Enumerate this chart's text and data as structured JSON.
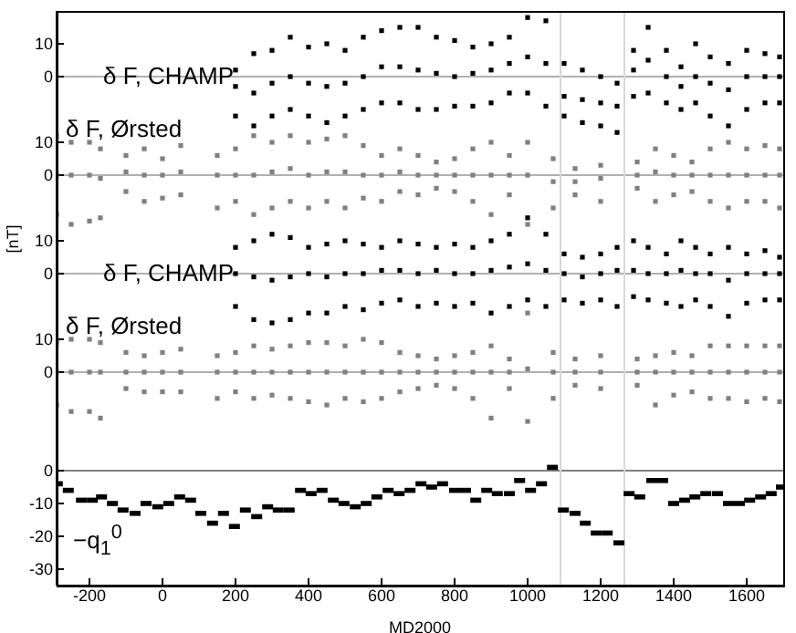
{
  "chart_data": [
    {
      "type": "scatter",
      "xlim": [
        -290,
        1700
      ],
      "ylim": [
        -20,
        20
      ],
      "yticks": [
        0,
        10
      ],
      "tick_labels": "y",
      "ref_lines": [
        {
          "axis": "y",
          "value": 0,
          "color": "#b0b0b0"
        },
        {
          "axis": "x",
          "value": 1090,
          "color": "#d8d8d8"
        },
        {
          "axis": "x",
          "value": 1265,
          "color": "#d8d8d8"
        }
      ],
      "series": [
        {
          "name": "δ F, CHAMP",
          "color": "#000000",
          "x": [
            200,
            250,
            300,
            350,
            400,
            450,
            500,
            550,
            600,
            650,
            700,
            750,
            800,
            850,
            900,
            950,
            1000,
            1050,
            1100,
            1150,
            1200,
            1245,
            1290,
            1330,
            1380,
            1420,
            1460,
            1500,
            1550,
            1600,
            1650,
            1690,
            200,
            250,
            300,
            350,
            400,
            450,
            500,
            550,
            600,
            650,
            700,
            750,
            800,
            850,
            900,
            950,
            1000,
            1050,
            1100,
            1150,
            1200,
            1245,
            1290,
            1330,
            1380,
            1420,
            1460,
            1500,
            1550,
            1600,
            1650,
            1690,
            200,
            250,
            300,
            350,
            400,
            450,
            500,
            550,
            600,
            650,
            700,
            750,
            800,
            850,
            900,
            950,
            1000,
            1050,
            1100,
            1150,
            1200,
            1245,
            1290,
            1330,
            1380,
            1420,
            1460,
            1500,
            1550,
            1600,
            1650,
            1690
          ],
          "values": [
            2,
            7,
            8,
            12,
            9,
            10,
            8,
            12,
            14,
            15,
            15,
            12,
            11,
            9,
            10,
            12,
            18,
            17,
            4,
            2,
            0,
            -2,
            8,
            15,
            8,
            3,
            10,
            6,
            4,
            8,
            7,
            6,
            -12,
            -15,
            -12,
            -10,
            -12,
            -14,
            -12,
            -10,
            -8,
            -8,
            -10,
            -10,
            -9,
            -9,
            -8,
            -5,
            -5,
            -9,
            -12,
            -14,
            -15,
            -17,
            -6,
            -5,
            -8,
            -10,
            -8,
            -12,
            -15,
            -10,
            -8,
            -8,
            -3,
            -5,
            -2,
            0,
            -2,
            -3,
            -2,
            0,
            3,
            3,
            2,
            1,
            0,
            1,
            2,
            4,
            6,
            4,
            -6,
            -7,
            -8,
            -9,
            2,
            5,
            0,
            -3,
            0,
            -2,
            -4,
            0,
            0,
            0
          ]
        }
      ]
    },
    {
      "type": "scatter",
      "xlim": [
        -290,
        1700
      ],
      "ylim": [
        -20,
        20
      ],
      "yticks": [
        0,
        10
      ],
      "tick_labels": "y",
      "ref_lines": [
        {
          "axis": "y",
          "value": 0,
          "color": "#b0b0b0"
        },
        {
          "axis": "x",
          "value": 1090,
          "color": "#d8d8d8"
        },
        {
          "axis": "x",
          "value": 1265,
          "color": "#d8d8d8"
        }
      ],
      "series": [
        {
          "name": "δ F, Ørsted",
          "color": "#808080",
          "x": [
            -290,
            -250,
            -200,
            -170,
            -100,
            -50,
            0,
            50,
            150,
            200,
            250,
            300,
            350,
            400,
            450,
            500,
            550,
            600,
            650,
            700,
            750,
            800,
            850,
            900,
            950,
            1000,
            1070,
            1130,
            1200,
            1300,
            1350,
            1400,
            1450,
            1500,
            1550,
            1600,
            1650,
            1690,
            -290,
            -250,
            -200,
            -170,
            -100,
            -50,
            0,
            50,
            150,
            200,
            250,
            300,
            350,
            400,
            450,
            500,
            550,
            600,
            650,
            700,
            750,
            800,
            850,
            900,
            950,
            1000,
            1070,
            1130,
            1200,
            1300,
            1350,
            1400,
            1450,
            1500,
            1550,
            1600,
            1650,
            1690,
            -290,
            -250,
            -200,
            -170,
            -100,
            -50,
            0,
            50,
            150,
            200,
            250,
            300,
            350,
            400,
            450,
            500,
            550,
            600,
            650,
            700,
            750,
            800,
            850,
            900,
            950,
            1000,
            1070,
            1130,
            1200,
            1300,
            1350,
            1400,
            1450,
            1500,
            1550,
            1600,
            1650,
            1690
          ],
          "values": [
            12,
            10,
            10,
            8,
            6,
            8,
            5,
            9,
            6,
            8,
            12,
            10,
            12,
            10,
            11,
            12,
            9,
            6,
            8,
            6,
            4,
            5,
            8,
            10,
            6,
            10,
            5,
            2,
            3,
            4,
            8,
            6,
            4,
            8,
            10,
            8,
            9,
            8,
            -12,
            -15,
            -14,
            -13,
            -5,
            -8,
            -7,
            -6,
            -10,
            -8,
            -12,
            -10,
            -8,
            -10,
            -8,
            -10,
            -7,
            -8,
            -5,
            -6,
            -4,
            -5,
            -8,
            -12,
            -6,
            -15,
            -10,
            -6,
            -8,
            -4,
            -8,
            -6,
            -5,
            -8,
            -10,
            -8,
            -8,
            -10,
            0,
            0,
            0,
            -1,
            1,
            0,
            0,
            1,
            0,
            0,
            0,
            1,
            2,
            0,
            1,
            1,
            0,
            0,
            1,
            0,
            0,
            0,
            0,
            0,
            0,
            0,
            -2,
            -2,
            -1,
            0,
            1,
            0,
            0,
            0,
            0,
            0,
            0,
            0
          ]
        }
      ]
    },
    {
      "type": "scatter",
      "xlim": [
        -290,
        1700
      ],
      "ylim": [
        -20,
        20
      ],
      "yticks": [
        0,
        10
      ],
      "tick_labels": "y",
      "ylabel": "[nT]",
      "ref_lines": [
        {
          "axis": "y",
          "value": 0,
          "color": "#b0b0b0"
        },
        {
          "axis": "x",
          "value": 1090,
          "color": "#d8d8d8"
        },
        {
          "axis": "x",
          "value": 1265,
          "color": "#d8d8d8"
        }
      ],
      "series": [
        {
          "name": "δ F, CHAMP",
          "color": "#000000",
          "x": [
            200,
            250,
            300,
            350,
            400,
            450,
            500,
            550,
            600,
            650,
            700,
            750,
            800,
            850,
            900,
            950,
            1000,
            1050,
            1100,
            1150,
            1200,
            1245,
            1290,
            1330,
            1380,
            1420,
            1460,
            1500,
            1550,
            1600,
            1650,
            1690,
            200,
            250,
            300,
            350,
            400,
            450,
            500,
            550,
            600,
            650,
            700,
            750,
            800,
            850,
            900,
            950,
            1000,
            1050,
            1100,
            1150,
            1200,
            1245,
            1290,
            1330,
            1380,
            1420,
            1460,
            1500,
            1550,
            1600,
            1650,
            1690,
            200,
            250,
            300,
            350,
            400,
            450,
            500,
            550,
            600,
            650,
            700,
            750,
            800,
            850,
            900,
            950,
            1000,
            1050,
            1100,
            1150,
            1200,
            1245,
            1290,
            1330,
            1380,
            1420,
            1460,
            1500,
            1550,
            1600,
            1650,
            1690
          ],
          "values": [
            8,
            10,
            12,
            11,
            8,
            9,
            10,
            9,
            8,
            10,
            9,
            8,
            9,
            8,
            10,
            12,
            17,
            12,
            6,
            5,
            6,
            8,
            10,
            8,
            6,
            10,
            8,
            6,
            8,
            6,
            7,
            5,
            -10,
            -14,
            -15,
            -14,
            -12,
            -12,
            -10,
            -11,
            -9,
            -8,
            -10,
            -9,
            -10,
            -9,
            -12,
            -10,
            -8,
            -10,
            -8,
            -9,
            -8,
            -10,
            -7,
            -8,
            -9,
            -10,
            -8,
            -10,
            -13,
            -9,
            -8,
            -8,
            0,
            -1,
            -2,
            -1,
            0,
            -1,
            0,
            0,
            1,
            1,
            0,
            1,
            0,
            0,
            1,
            2,
            3,
            1,
            0,
            -1,
            0,
            1,
            1,
            0,
            0,
            1,
            0,
            0,
            -2,
            0,
            0,
            0
          ]
        }
      ]
    },
    {
      "type": "scatter",
      "xlim": [
        -290,
        1700
      ],
      "ylim": [
        -20,
        20
      ],
      "yticks": [
        0,
        10
      ],
      "tick_labels": "y",
      "ref_lines": [
        {
          "axis": "y",
          "value": 0,
          "color": "#b0b0b0"
        },
        {
          "axis": "x",
          "value": 1090,
          "color": "#d8d8d8"
        },
        {
          "axis": "x",
          "value": 1265,
          "color": "#d8d8d8"
        }
      ],
      "series": [
        {
          "name": "δ F, Ørsted",
          "color": "#808080",
          "x": [
            -290,
            -250,
            -200,
            -170,
            -100,
            -50,
            0,
            50,
            150,
            200,
            250,
            300,
            350,
            400,
            450,
            500,
            550,
            600,
            650,
            700,
            750,
            800,
            850,
            900,
            950,
            1000,
            1070,
            1130,
            1200,
            1300,
            1350,
            1400,
            1450,
            1500,
            1550,
            1600,
            1650,
            1690,
            -290,
            -250,
            -200,
            -170,
            -100,
            -50,
            0,
            50,
            150,
            200,
            250,
            300,
            350,
            400,
            450,
            500,
            550,
            600,
            650,
            700,
            750,
            800,
            850,
            900,
            950,
            1000,
            1070,
            1130,
            1200,
            1300,
            1350,
            1400,
            1450,
            1500,
            1550,
            1600,
            1650,
            1690,
            -290,
            -250,
            -200,
            -170,
            -100,
            -50,
            0,
            50,
            150,
            200,
            250,
            300,
            350,
            400,
            450,
            500,
            550,
            600,
            650,
            700,
            750,
            800,
            850,
            900,
            950,
            1000,
            1070,
            1130,
            1200,
            1300,
            1350,
            1400,
            1450,
            1500,
            1550,
            1600,
            1650,
            1690
          ],
          "values": [
            9,
            10,
            10,
            9,
            6,
            5,
            6,
            7,
            5,
            6,
            8,
            7,
            8,
            9,
            9,
            8,
            10,
            9,
            6,
            5,
            4,
            5,
            6,
            8,
            4,
            18,
            6,
            4,
            5,
            4,
            5,
            6,
            5,
            8,
            8,
            8,
            8,
            8,
            -10,
            -12,
            -12,
            -14,
            -5,
            -6,
            -6,
            -6,
            -8,
            -6,
            -8,
            -7,
            -8,
            -9,
            -10,
            -8,
            -9,
            -8,
            -6,
            -5,
            -4,
            -5,
            -8,
            -14,
            -5,
            -15,
            -8,
            -4,
            -5,
            -4,
            -10,
            -7,
            -6,
            -8,
            -8,
            -9,
            -8,
            -9,
            0,
            0,
            0,
            0,
            0,
            0,
            0,
            0,
            0,
            0,
            0,
            0,
            0,
            0,
            0,
            0,
            0,
            0,
            0,
            0,
            0,
            0,
            0,
            0,
            0,
            1,
            0,
            0,
            0,
            0,
            0,
            0,
            0,
            0,
            0,
            0,
            0,
            0
          ]
        }
      ]
    },
    {
      "type": "scatter",
      "xlim": [
        -290,
        1700
      ],
      "xticks": [
        -200,
        0,
        200,
        400,
        600,
        800,
        1000,
        1200,
        1400,
        1600
      ],
      "ylim": [
        -35,
        10
      ],
      "yticks": [
        0,
        -10,
        -20,
        -30
      ],
      "xlabel": "MD2000",
      "ref_lines": [
        {
          "axis": "y",
          "value": 0,
          "color": "#808080"
        },
        {
          "axis": "x",
          "value": 1090,
          "color": "#d8d8d8"
        },
        {
          "axis": "x",
          "value": 1265,
          "color": "#d8d8d8"
        }
      ],
      "series": [
        {
          "name": "−q$_{1}$$^{0}$",
          "color": "#000000",
          "x": [
            -288,
            -258,
            -222,
            -192,
            -167,
            -137,
            -108,
            -75,
            -45,
            -13,
            17,
            47,
            77,
            105,
            137,
            167,
            197,
            227,
            258,
            288,
            317,
            347,
            378,
            407,
            437,
            468,
            497,
            528,
            558,
            587,
            618,
            648,
            678,
            708,
            737,
            767,
            800,
            830,
            858,
            888,
            917,
            950,
            978,
            1008,
            1038,
            1068,
            1098,
            1130,
            1158,
            1188,
            1218,
            1250,
            1278,
            1307,
            1340,
            1370,
            1400,
            1430,
            1458,
            1488,
            1520,
            1550,
            1580,
            1608,
            1638,
            1667,
            1695
          ],
          "values": [
            -4,
            -6,
            -9,
            -9,
            -8,
            -10,
            -12,
            -13,
            -10,
            -11,
            -10,
            -8,
            -9,
            -13,
            -16,
            -13,
            -17,
            -12,
            -14,
            -11,
            -12,
            -12,
            -6,
            -7,
            -6,
            -9,
            -10,
            -11,
            -10,
            -8,
            -6,
            -7,
            -6,
            -4,
            -5,
            -4,
            -6,
            -6,
            -9,
            -6,
            -7,
            -7,
            -3,
            -6,
            -4,
            1,
            -12,
            -13,
            -16,
            -19,
            -19,
            -22,
            -7,
            -8,
            -3,
            -3,
            -10,
            -9,
            -8,
            -7,
            -7,
            -10,
            -10,
            -9,
            -8,
            -7,
            -5
          ]
        }
      ]
    }
  ]
}
